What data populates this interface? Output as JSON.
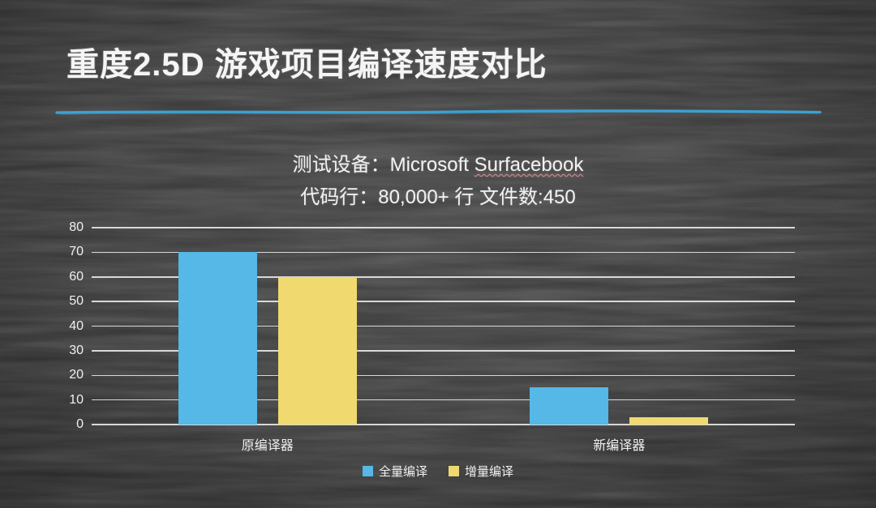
{
  "slide": {
    "title": "重度2.5D 游戏项目编译速度对比",
    "subtitle": {
      "device_prefix": "测试设备：Microsoft ",
      "device_name": "Surfacebook",
      "code_stats": "代码行：80,000+ 行  文件数:450"
    }
  },
  "colors": {
    "background": "#171717",
    "title_text": "#f5f5f5",
    "accent_underline": "#3ba7d9",
    "spellcheck_underline": "#d98b8b",
    "gridline": "#e0e0e0",
    "axis_text": "#f0f0f0",
    "series_full_compile": "#55b8e6",
    "series_incremental_compile": "#f0d96e"
  },
  "chart_data": {
    "type": "bar",
    "title": "",
    "categories": [
      "原编译器",
      "新编译器"
    ],
    "series": [
      {
        "name": "全量编译",
        "color": "#55b8e6",
        "values": [
          70,
          15
        ]
      },
      {
        "name": "增量编译",
        "color": "#f0d96e",
        "values": [
          60,
          3
        ]
      }
    ],
    "ylim": [
      0,
      80
    ],
    "ytick_step": 10,
    "grid": true,
    "legend_position": "bottom"
  }
}
